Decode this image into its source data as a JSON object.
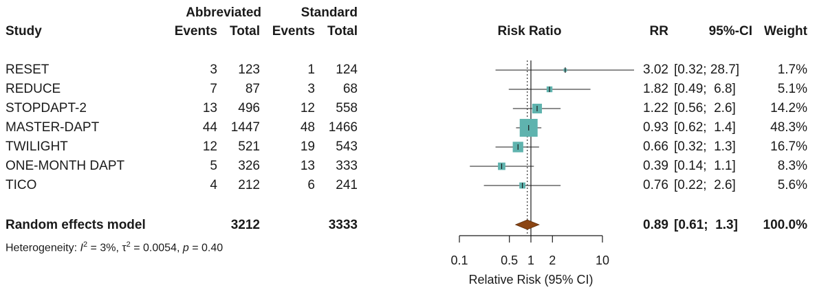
{
  "header": {
    "group1": "Abbreviated",
    "group2": "Standard",
    "study": "Study",
    "events": "Events",
    "total": "Total",
    "plot_title": "Risk Ratio",
    "rr": "RR",
    "ci": "95%-CI",
    "weight": "Weight"
  },
  "studies": [
    {
      "name": "RESET",
      "e1": "3",
      "t1": "123",
      "e2": "1",
      "t2": "124",
      "rr_text": "3.02",
      "ci_text": "[0.32; 28.7]",
      "weight_text": "1.7%"
    },
    {
      "name": "REDUCE",
      "e1": "7",
      "t1": "87",
      "e2": "3",
      "t2": "68",
      "rr_text": "1.82",
      "ci_text": "[0.49;  6.8]",
      "weight_text": "5.1%"
    },
    {
      "name": "STOPDAPT-2",
      "e1": "13",
      "t1": "496",
      "e2": "12",
      "t2": "558",
      "rr_text": "1.22",
      "ci_text": "[0.56;  2.6]",
      "weight_text": "14.2%"
    },
    {
      "name": "MASTER-DAPT",
      "e1": "44",
      "t1": "1447",
      "e2": "48",
      "t2": "1466",
      "rr_text": "0.93",
      "ci_text": "[0.62;  1.4]",
      "weight_text": "48.3%"
    },
    {
      "name": "TWILIGHT",
      "e1": "12",
      "t1": "521",
      "e2": "19",
      "t2": "543",
      "rr_text": "0.66",
      "ci_text": "[0.32;  1.3]",
      "weight_text": "16.7%"
    },
    {
      "name": "ONE-MONTH DAPT",
      "e1": "5",
      "t1": "326",
      "e2": "13",
      "t2": "333",
      "rr_text": "0.39",
      "ci_text": "[0.14;  1.1]",
      "weight_text": "8.3%"
    },
    {
      "name": "TICO",
      "e1": "4",
      "t1": "212",
      "e2": "6",
      "t2": "241",
      "rr_text": "0.76",
      "ci_text": "[0.22;  2.6]",
      "weight_text": "5.6%"
    }
  ],
  "summary": {
    "label": "Random effects model",
    "t1": "3212",
    "t2": "3333",
    "rr_text": "0.89",
    "ci_text": "[0.61;  1.3]",
    "weight_text": "100.0%",
    "het_prefix": "Heterogeneity: ",
    "het_i": "I",
    "het_sup": "2",
    "het_mid": " = 3%, τ",
    "het_sup2": "2",
    "het_mid2": " = 0.0054, ",
    "het_p": "p",
    "het_end": " = 0.40"
  },
  "chart_data": {
    "type": "scatter",
    "subtype": "forest",
    "title": "Risk Ratio",
    "xlabel": "Relative Risk (95% CI)",
    "xscale": "log",
    "xlim": [
      0.1,
      10
    ],
    "xticks": [
      0.1,
      0.5,
      1,
      2,
      10
    ],
    "xtick_labels": [
      "0.1",
      "0.5",
      "1",
      "2",
      "10"
    ],
    "reference_line": 1,
    "summary_dotted_line": 0.89,
    "series": [
      {
        "rr": 3.02,
        "lo": 0.32,
        "hi": 28.7,
        "weight": 1.7
      },
      {
        "rr": 1.82,
        "lo": 0.49,
        "hi": 6.8,
        "weight": 5.1
      },
      {
        "rr": 1.22,
        "lo": 0.56,
        "hi": 2.6,
        "weight": 14.2
      },
      {
        "rr": 0.93,
        "lo": 0.62,
        "hi": 1.4,
        "weight": 48.3
      },
      {
        "rr": 0.66,
        "lo": 0.32,
        "hi": 1.3,
        "weight": 16.7
      },
      {
        "rr": 0.39,
        "lo": 0.14,
        "hi": 1.1,
        "weight": 8.3
      },
      {
        "rr": 0.76,
        "lo": 0.22,
        "hi": 2.6,
        "weight": 5.6
      }
    ],
    "pooled": {
      "rr": 0.89,
      "lo": 0.61,
      "hi": 1.3
    },
    "colors": {
      "box": "#5fb3ae",
      "diamond": "#8b4513",
      "line": "#1a1a1a"
    }
  }
}
